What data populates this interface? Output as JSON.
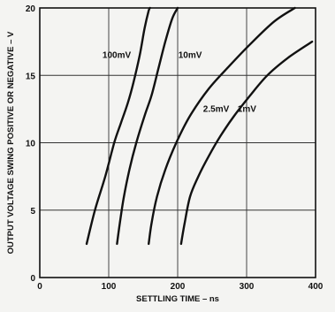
{
  "chart_data": {
    "type": "line",
    "title": "",
    "xlabel": "SETTLING TIME – ns",
    "ylabel": "OUTPUT VOLTAGE SWING POSITIVE OR NEGATIVE – V",
    "xlim": [
      0,
      400
    ],
    "ylim": [
      0,
      20
    ],
    "x_ticks": [
      0,
      100,
      200,
      300,
      400
    ],
    "y_ticks": [
      0,
      5,
      10,
      15,
      20
    ],
    "grid": true,
    "legend": "labels on curves",
    "series": [
      {
        "name": "100mV",
        "x": [
          68,
          80,
          95,
          108,
          118,
          128,
          136,
          145,
          152,
          158,
          160
        ],
        "y": [
          2.5,
          5,
          7.5,
          10,
          11.5,
          13,
          14.5,
          16.5,
          18.5,
          19.8,
          20
        ]
      },
      {
        "name": "10mV",
        "x": [
          112,
          116,
          122,
          130,
          140,
          152,
          162,
          172,
          182,
          192,
          200
        ],
        "y": [
          2.5,
          4,
          6,
          8,
          10,
          12,
          13.5,
          15.5,
          17.5,
          19.2,
          20
        ]
      },
      {
        "name": "2.5mV",
        "x": [
          158,
          162,
          170,
          182,
          198,
          218,
          245,
          275,
          305,
          340,
          370
        ],
        "y": [
          2.5,
          4,
          6,
          8,
          10,
          12,
          14,
          15.7,
          17.3,
          19,
          20
        ]
      },
      {
        "name": "1mV",
        "x": [
          205,
          210,
          218,
          230,
          245,
          262,
          282,
          305,
          330,
          360,
          395
        ],
        "y": [
          2.5,
          4,
          6,
          7.5,
          9,
          10.5,
          12,
          13.5,
          15,
          16.3,
          17.5
        ]
      }
    ]
  }
}
